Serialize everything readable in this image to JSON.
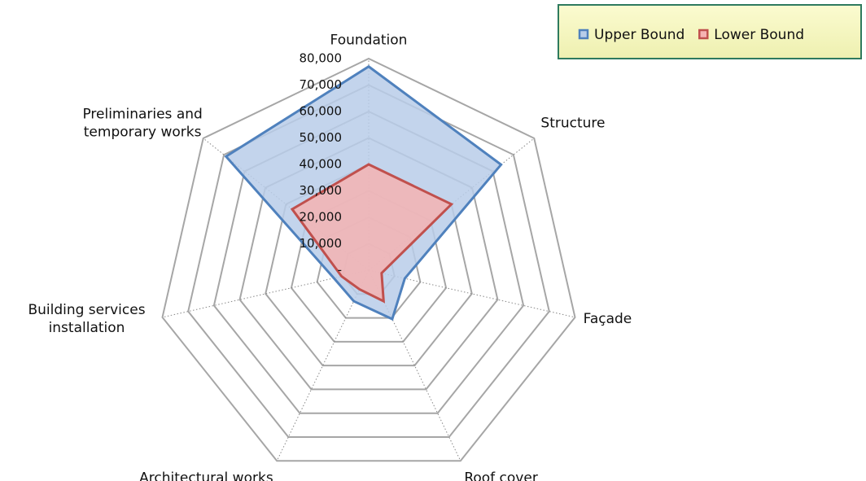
{
  "chart_data": {
    "type": "radar",
    "categories": [
      "Foundation",
      "Structure",
      "Façade",
      "Roof cover",
      "Architectural works",
      "Building services installation",
      "Preliminaries and temporary works"
    ],
    "series": [
      {
        "name": "Upper Bound",
        "color": "#4f81bd",
        "fill": "#b9cde9",
        "values": [
          77000,
          64000,
          14000,
          20500,
          13000,
          13500,
          69000
        ]
      },
      {
        "name": "Lower Bound",
        "color": "#c0504d",
        "fill": "#f5b3b3",
        "values": [
          40000,
          40000,
          5000,
          13000,
          8000,
          10500,
          37000
        ]
      }
    ],
    "ylim": [
      0,
      80000
    ],
    "yticks": [
      {
        "value": 0,
        "label": "-"
      },
      {
        "value": 10000,
        "label": "10,000"
      },
      {
        "value": 20000,
        "label": "20,000"
      },
      {
        "value": 30000,
        "label": "30,000"
      },
      {
        "value": 40000,
        "label": "40,000"
      },
      {
        "value": 50000,
        "label": "50,000"
      },
      {
        "value": 60000,
        "label": "60,000"
      },
      {
        "value": 70000,
        "label": "70,000"
      },
      {
        "value": 80000,
        "label": "80,000"
      }
    ],
    "grid": true,
    "legend": "top-right"
  }
}
